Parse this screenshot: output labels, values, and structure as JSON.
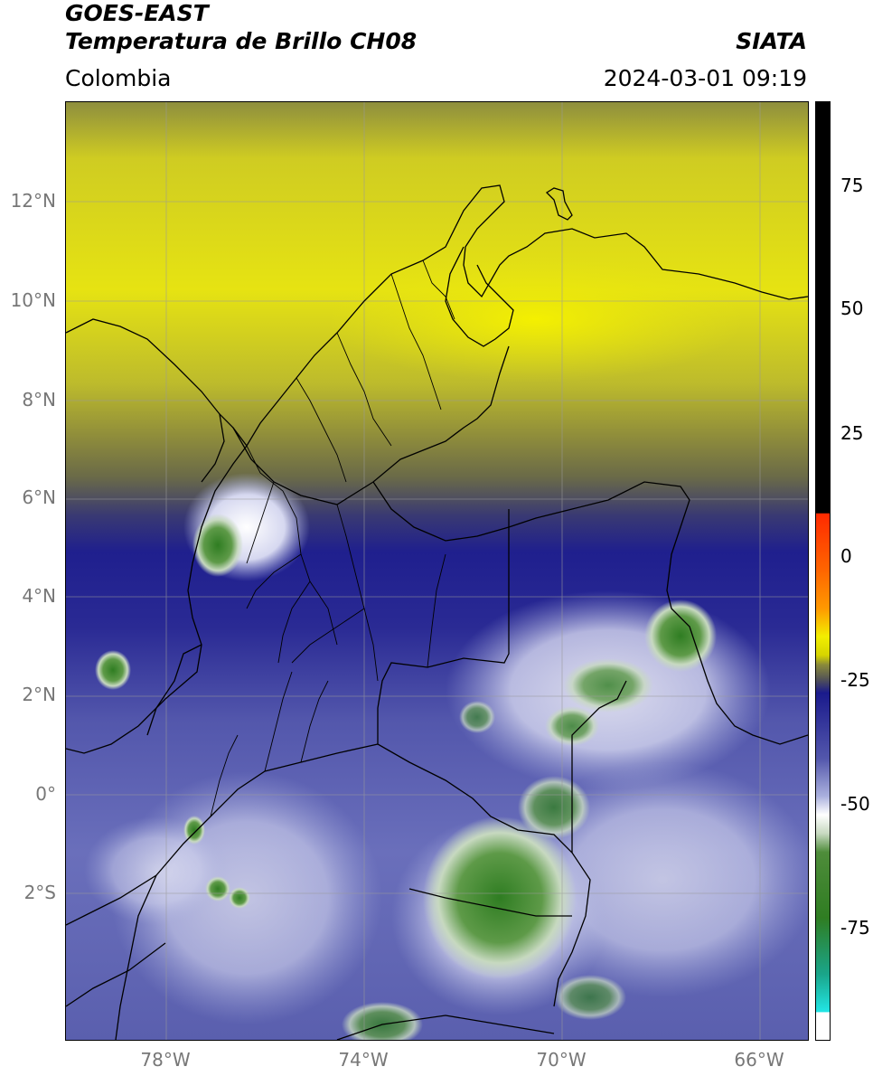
{
  "header": {
    "title_line1": "GOES-EAST",
    "title_line2": "Temperatura de Brillo CH08",
    "subtitle": "Colombia",
    "agency": "SIATA",
    "datetime": "2024-03-01 09:19"
  },
  "map": {
    "lat_ticks": [
      "12°N",
      "10°N",
      "8°N",
      "6°N",
      "4°N",
      "2°N",
      "0°",
      "2°S"
    ],
    "lon_ticks": [
      "78°W",
      "74°W",
      "70°W",
      "66°W"
    ]
  },
  "colorbar": {
    "ticks": [
      "75",
      "50",
      "25",
      "0",
      "-25",
      "-50",
      "-75"
    ],
    "colors": {
      "black": "#000000",
      "red": "#ff2a00",
      "orange": "#ff9900",
      "yellow": "#f2ee00",
      "olive": "#8a8a3a",
      "gray": "#555555",
      "navy": "#1a1a8c",
      "lavender": "#aab0dd",
      "white": "#ffffff",
      "green": "#2f7d22",
      "teal": "#1aa58a",
      "cyan": "#22e5e5"
    }
  }
}
